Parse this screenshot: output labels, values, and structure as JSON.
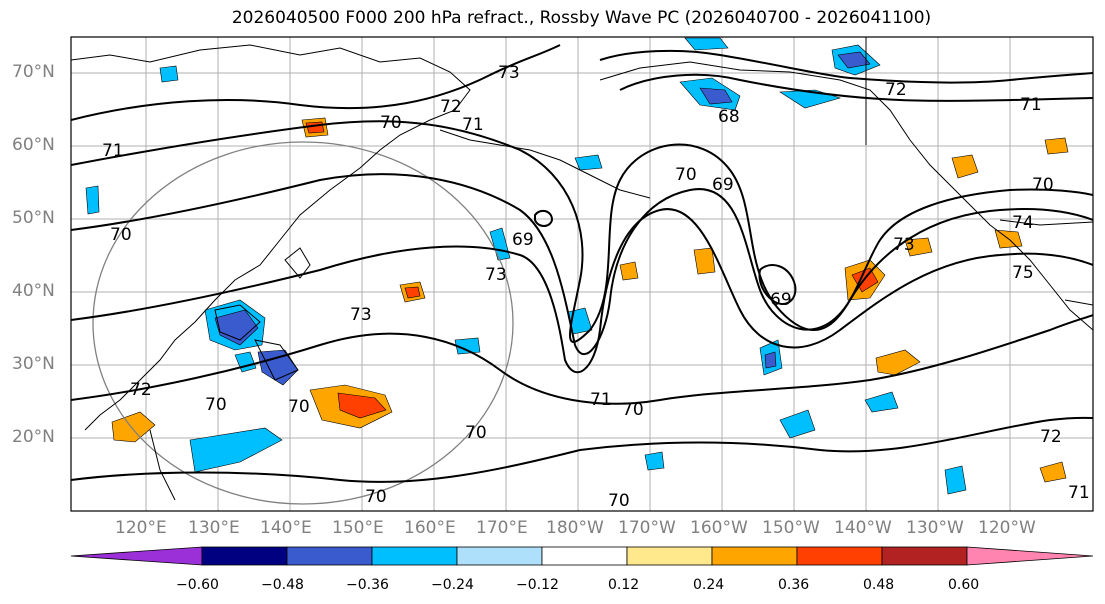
{
  "title": "2026040500 F000 200 hPa refract., Rossby Wave PC (2026040700 - 2026041100)",
  "map": {
    "lat_labels": [
      "70°N",
      "60°N",
      "50°N",
      "40°N",
      "30°N",
      "20°N"
    ],
    "lon_labels": [
      "120°E",
      "130°E",
      "140°E",
      "150°E",
      "160°E",
      "170°E",
      "180°W",
      "170°W",
      "160°W",
      "150°W",
      "140°W",
      "130°W",
      "120°W"
    ],
    "contour_labels": [
      "73",
      "72",
      "70",
      "71",
      "71",
      "68",
      "72",
      "71",
      "70",
      "69",
      "70",
      "74",
      "73",
      "75",
      "69",
      "69",
      "73",
      "73",
      "70",
      "72",
      "70",
      "70",
      "71",
      "70",
      "70",
      "70",
      "72",
      "71",
      "70"
    ],
    "colors": {
      "grid": "#b0b0b0",
      "contour": "#000000",
      "circle": "#808080",
      "coast": "#000000"
    }
  },
  "colorbar": {
    "ticks": [
      "−0.60",
      "−0.48",
      "−0.36",
      "−0.24",
      "−0.12",
      "0.12",
      "0.24",
      "0.36",
      "0.48",
      "0.60"
    ],
    "colors": [
      "#9b30d9",
      "#000080",
      "#3a5bcd",
      "#00bfff",
      "#aee0fb",
      "#ffffff",
      "#ffe98c",
      "#ffa500",
      "#ff4000",
      "#b22222",
      "#ff85b0"
    ]
  }
}
